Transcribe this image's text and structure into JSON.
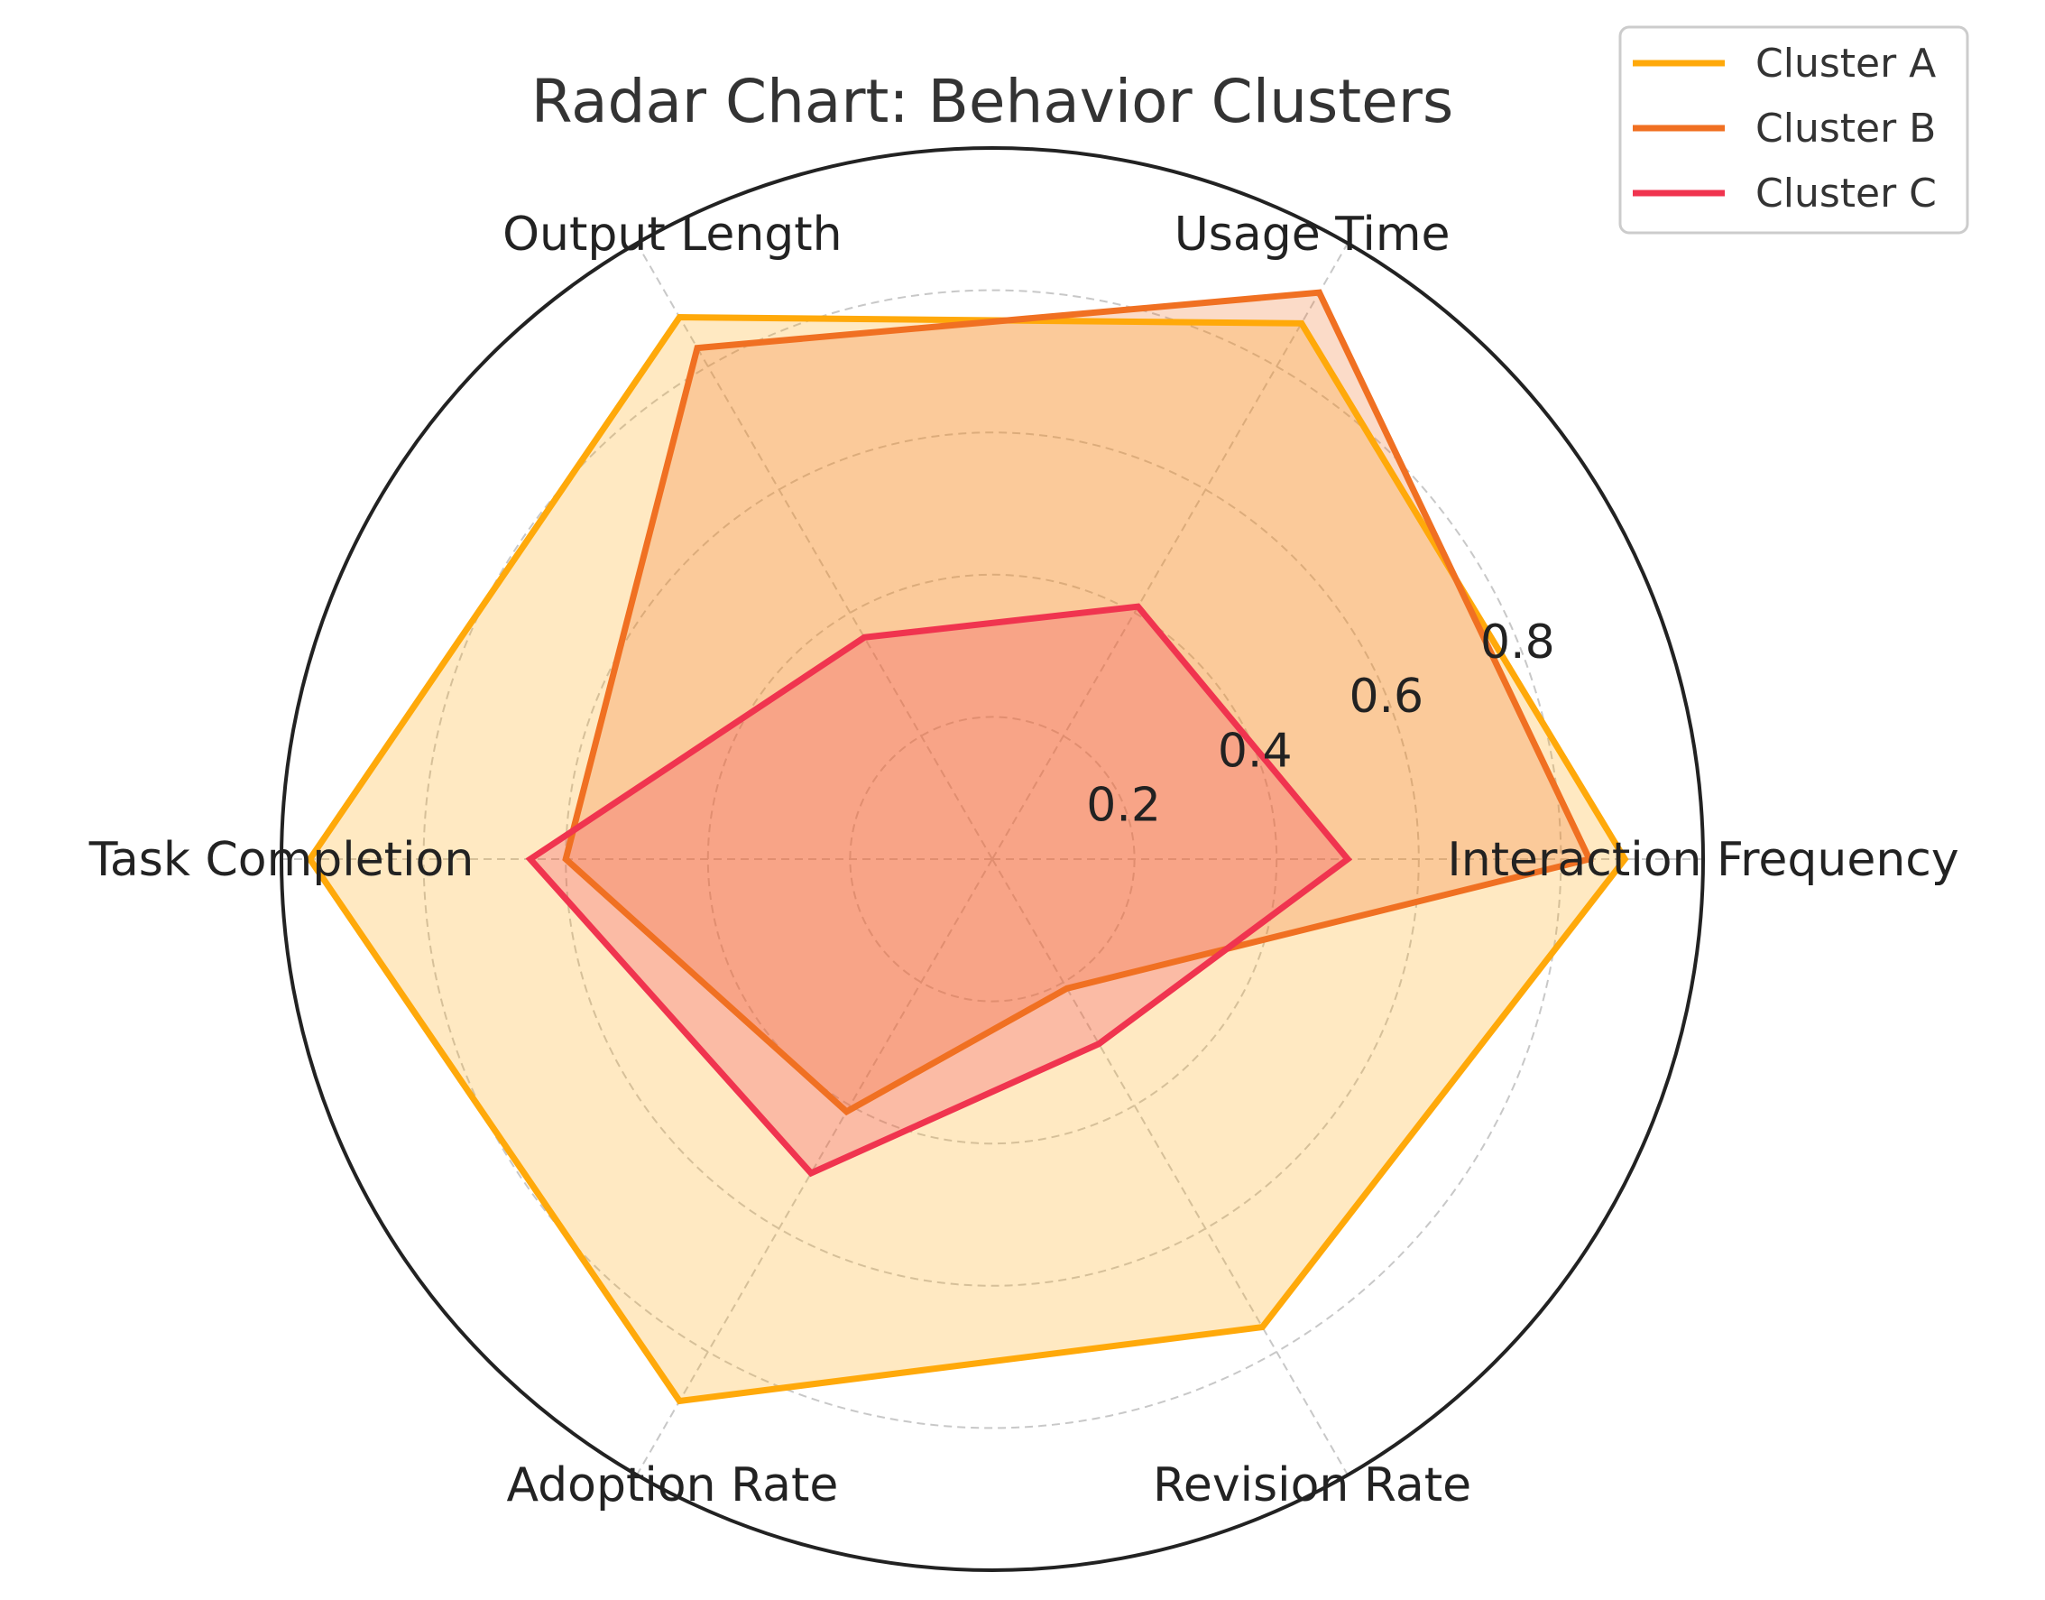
{
  "chart_data": {
    "type": "radar",
    "title": "Radar Chart: Behavior Clusters",
    "categories": [
      "Interaction Frequency",
      "Usage Time",
      "Output Length",
      "Task Completion",
      "Adoption Rate",
      "Revision Rate"
    ],
    "r_ticks": [
      0.2,
      0.4,
      0.6,
      0.8
    ],
    "r_tick_labels": [
      "0.2",
      "0.4",
      "0.6",
      "0.8"
    ],
    "rlim": [
      0,
      1.0
    ],
    "grid": true,
    "legend_position": "top-right",
    "series": [
      {
        "name": "Cluster A",
        "color": "#FFA90A",
        "values": [
          0.89,
          0.87,
          0.88,
          0.96,
          0.88,
          0.76
        ]
      },
      {
        "name": "Cluster B",
        "color": "#F07022",
        "values": [
          0.84,
          0.92,
          0.83,
          0.6,
          0.41,
          0.21
        ]
      },
      {
        "name": "Cluster C",
        "color": "#F0344F",
        "values": [
          0.5,
          0.41,
          0.36,
          0.65,
          0.51,
          0.3
        ]
      }
    ]
  }
}
